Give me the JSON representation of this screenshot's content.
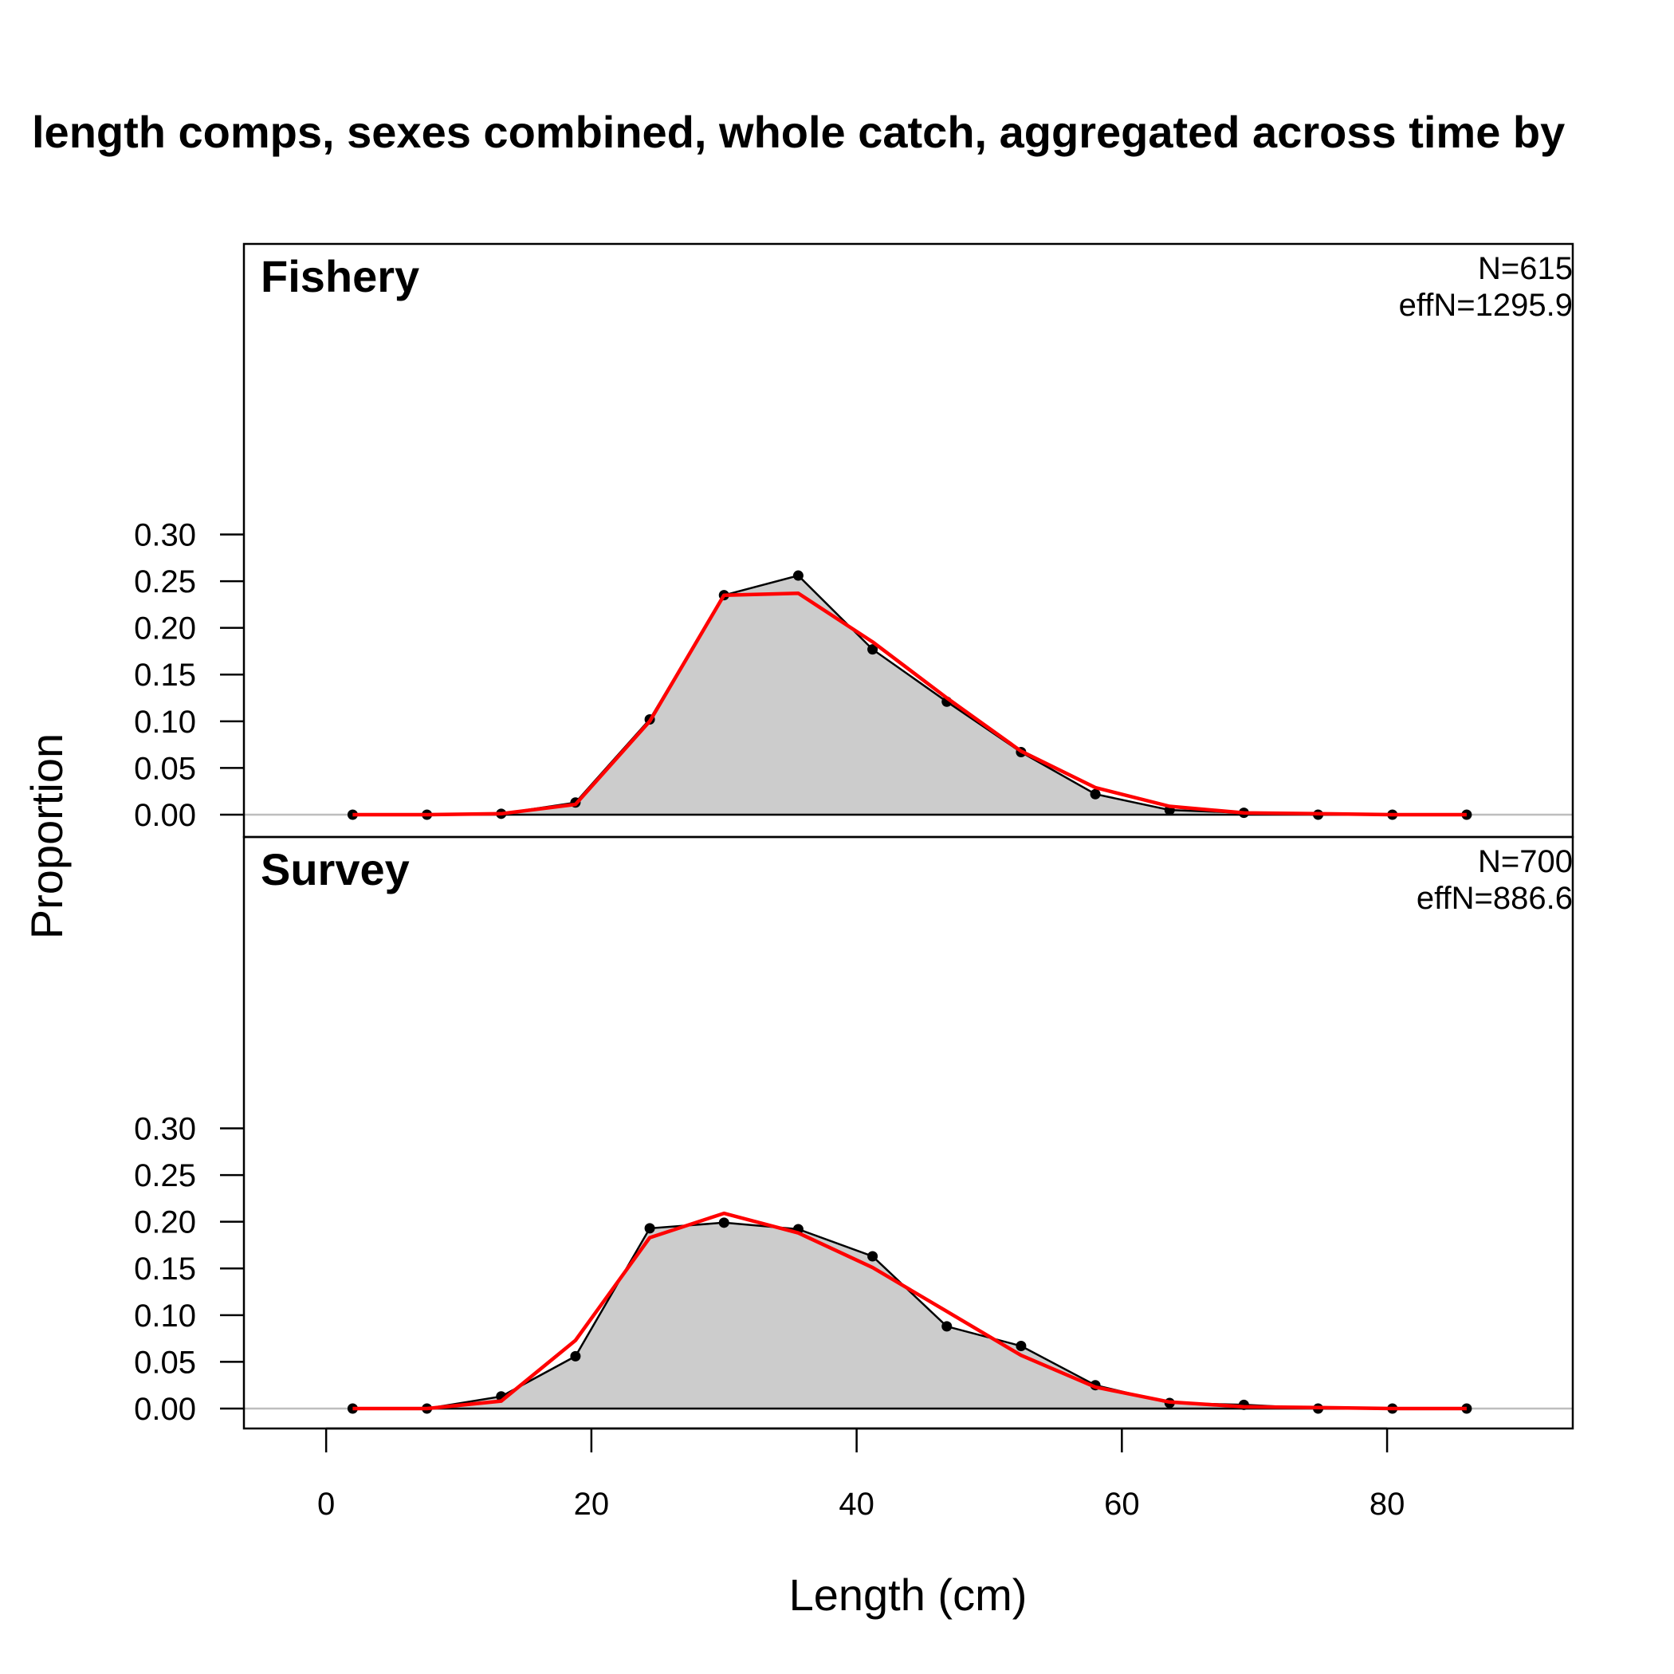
{
  "chart_data": {
    "type": "area",
    "title": "length comps, sexes combined, whole catch, aggregated across time by",
    "xlabel": "Length (cm)",
    "ylabel": "Proportion",
    "xlim": [
      -6.2,
      94
    ],
    "ylim": [
      -0.011,
      0.306
    ],
    "x_ticks": [
      "0",
      "20",
      "40",
      "60",
      "80"
    ],
    "y_ticks": [
      "0.00",
      "0.05",
      "0.10",
      "0.15",
      "0.20",
      "0.25",
      "0.30"
    ],
    "colors": {
      "observed_fill": "#cccccc",
      "observed_line": "#000000",
      "expected_line": "#ff0000",
      "zero_line": "#bebebe"
    },
    "x": [
      2,
      7.6,
      13.2,
      18.8,
      24.4,
      30,
      35.6,
      41.2,
      46.8,
      52.4,
      58,
      63.6,
      69.2,
      74.8,
      80.4,
      86
    ],
    "panels": [
      {
        "name": "Fishery",
        "n_text": "N=615",
        "effn_text": "effN=1295.9",
        "observed": [
          0,
          0,
          0.001,
          0.013,
          0.102,
          0.235,
          0.256,
          0.177,
          0.121,
          0.067,
          0.022,
          0.005,
          0.002,
          0,
          0,
          0
        ],
        "expected": [
          0,
          0,
          0.001,
          0.011,
          0.1,
          0.235,
          0.237,
          0.185,
          0.125,
          0.068,
          0.029,
          0.009,
          0.002,
          0.001,
          0,
          0
        ]
      },
      {
        "name": "Survey",
        "n_text": "N=700",
        "effn_text": "effN=886.6",
        "observed": [
          0,
          0,
          0.013,
          0.056,
          0.193,
          0.199,
          0.192,
          0.163,
          0.088,
          0.067,
          0.025,
          0.006,
          0.004,
          0,
          0,
          0
        ],
        "expected": [
          0,
          0,
          0.008,
          0.073,
          0.183,
          0.209,
          0.188,
          0.151,
          0.104,
          0.057,
          0.023,
          0.007,
          0.002,
          0.001,
          0,
          0
        ]
      }
    ]
  }
}
